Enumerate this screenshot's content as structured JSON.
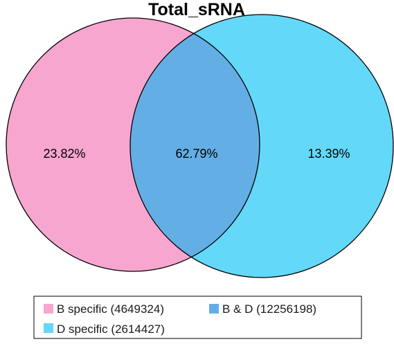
{
  "title": "Total_sRNA",
  "colors": {
    "b_specific": "#f7a6cf",
    "overlap": "#64aee6",
    "d_specific": "#64d8f8",
    "outline": "#000000"
  },
  "regions": {
    "b_specific_pct": "23.82%",
    "overlap_pct": "62.79%",
    "d_specific_pct": "13.39%"
  },
  "legend": {
    "b_specific": "B specific (4649324)",
    "overlap": "B & D (12256198)",
    "d_specific": "D specific (2614427)"
  }
}
